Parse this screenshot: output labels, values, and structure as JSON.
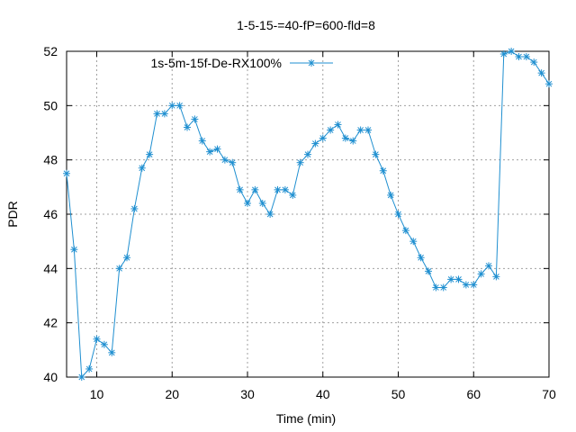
{
  "chart_data": {
    "type": "line",
    "title": "1-5-15-=40-fP=600-fld=8",
    "xlabel": "Time (min)",
    "ylabel": "PDR",
    "xlim": [
      6,
      70
    ],
    "ylim": [
      40,
      52
    ],
    "xticks": [
      10,
      20,
      30,
      40,
      50,
      60,
      70
    ],
    "yticks": [
      40,
      42,
      44,
      46,
      48,
      50,
      52
    ],
    "grid": true,
    "legend_position": "top-left",
    "series": [
      {
        "name": "1s-5m-15f-De-RX100%",
        "color": "#1f8fd0",
        "marker": "asterisk",
        "x": [
          6,
          7,
          8,
          9,
          10,
          11,
          12,
          13,
          14,
          15,
          16,
          17,
          18,
          19,
          20,
          21,
          22,
          23,
          24,
          25,
          26,
          27,
          28,
          29,
          30,
          31,
          32,
          33,
          34,
          35,
          36,
          37,
          38,
          39,
          40,
          41,
          42,
          43,
          44,
          45,
          46,
          47,
          48,
          49,
          50,
          51,
          52,
          53,
          54,
          55,
          56,
          57,
          58,
          59,
          60,
          61,
          62,
          63,
          64,
          65,
          66,
          67,
          68,
          69,
          70
        ],
        "values": [
          47.5,
          44.7,
          40.0,
          40.3,
          41.4,
          41.2,
          40.9,
          44.0,
          44.4,
          46.2,
          47.7,
          48.2,
          49.7,
          49.7,
          50.0,
          50.0,
          49.2,
          49.5,
          48.7,
          48.3,
          48.4,
          48.0,
          47.9,
          46.9,
          46.4,
          46.9,
          46.4,
          46.0,
          46.9,
          46.9,
          46.7,
          47.9,
          48.2,
          48.6,
          48.8,
          49.1,
          49.3,
          48.8,
          48.7,
          49.1,
          49.1,
          48.2,
          47.6,
          46.7,
          46.0,
          45.4,
          45.0,
          44.4,
          43.9,
          43.3,
          43.3,
          43.6,
          43.6,
          43.4,
          43.4,
          43.8,
          44.1,
          43.7,
          51.9,
          52.0,
          51.8,
          51.8,
          51.6,
          51.2,
          50.8
        ]
      }
    ]
  }
}
